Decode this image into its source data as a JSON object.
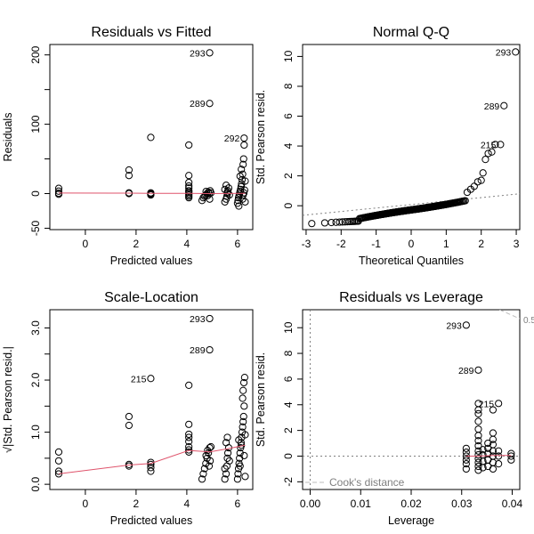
{
  "chart_data": [
    {
      "type": "scatter",
      "title": "Residuals vs Fitted",
      "xlabel": "Predicted values",
      "ylabel": "Residuals",
      "xlim": [
        -1.4,
        6.6
      ],
      "ylim": [
        -52,
        215
      ],
      "xticks": [
        0,
        2,
        4,
        6
      ],
      "yticks": [
        -50,
        0,
        50,
        100,
        150,
        200
      ],
      "ytick_labels": [
        "-50",
        "0",
        "",
        "100",
        "",
        "200"
      ],
      "points": [
        [
          -1.05,
          0.5
        ],
        [
          -1.05,
          3.5
        ],
        [
          -1.05,
          7.5
        ],
        [
          -1.05,
          -1
        ],
        [
          1.72,
          0
        ],
        [
          1.72,
          1
        ],
        [
          1.72,
          26
        ],
        [
          1.72,
          34
        ],
        [
          2.58,
          -1
        ],
        [
          2.58,
          -2
        ],
        [
          2.58,
          0
        ],
        [
          2.58,
          1
        ],
        [
          2.58,
          81
        ],
        [
          4.08,
          -6
        ],
        [
          4.08,
          -4
        ],
        [
          4.08,
          -2
        ],
        [
          4.08,
          0
        ],
        [
          4.08,
          2
        ],
        [
          4.08,
          4
        ],
        [
          4.08,
          8
        ],
        [
          4.08,
          11
        ],
        [
          4.08,
          16
        ],
        [
          4.08,
          26
        ],
        [
          4.08,
          70
        ],
        [
          4.6,
          -10
        ],
        [
          4.65,
          -6
        ],
        [
          4.7,
          -4
        ],
        [
          4.75,
          -2
        ],
        [
          4.8,
          0
        ],
        [
          4.85,
          2
        ],
        [
          4.9,
          -8
        ],
        [
          4.92,
          4
        ],
        [
          4.88,
          0
        ],
        [
          4.82,
          -3
        ],
        [
          4.76,
          3
        ],
        [
          4.95,
          1
        ],
        [
          4.9,
          130
        ],
        [
          4.9,
          203
        ],
        [
          5.5,
          -12
        ],
        [
          5.55,
          -8
        ],
        [
          5.58,
          -4
        ],
        [
          5.6,
          0
        ],
        [
          5.62,
          4
        ],
        [
          5.65,
          8
        ],
        [
          5.55,
          12
        ],
        [
          5.6,
          2
        ],
        [
          5.68,
          -2
        ],
        [
          5.5,
          6
        ],
        [
          6.0,
          -14
        ],
        [
          6.02,
          -10
        ],
        [
          6.04,
          -6
        ],
        [
          6.06,
          -3
        ],
        [
          6.08,
          0
        ],
        [
          6.1,
          3
        ],
        [
          6.12,
          6
        ],
        [
          6.14,
          10
        ],
        [
          6.16,
          14
        ],
        [
          6.18,
          20
        ],
        [
          6.2,
          28
        ],
        [
          6.22,
          42
        ],
        [
          6.24,
          50
        ],
        [
          6.26,
          70
        ],
        [
          6.2,
          -8
        ],
        [
          6.22,
          -2
        ],
        [
          6.25,
          1
        ],
        [
          6.28,
          5
        ],
        [
          6.3,
          -12
        ],
        [
          6.15,
          35
        ],
        [
          6.26,
          80
        ],
        [
          6.3,
          18
        ],
        [
          6.1,
          25
        ],
        [
          6.05,
          -18
        ]
      ],
      "smoother": [
        [
          -1.05,
          0.8
        ],
        [
          1.72,
          0.6
        ],
        [
          2.58,
          0.4
        ],
        [
          4.08,
          0.2
        ],
        [
          4.9,
          0.0
        ],
        [
          5.6,
          0.1
        ],
        [
          6.3,
          0.2
        ]
      ],
      "labeled_points": [
        {
          "label": "293",
          "x": 4.9,
          "y": 203
        },
        {
          "label": "289",
          "x": 4.9,
          "y": 130
        },
        {
          "label": "292",
          "x": 6.26,
          "y": 80
        }
      ]
    },
    {
      "type": "scatter",
      "title": "Normal Q-Q",
      "xlabel": "Theoretical Quantiles",
      "ylabel": "Std. Pearson resid.",
      "xlim": [
        -3.1,
        3.1
      ],
      "ylim": [
        -1.6,
        10.8
      ],
      "xticks": [
        -3,
        -2,
        -1,
        0,
        1,
        2,
        3
      ],
      "yticks": [
        0,
        2,
        4,
        6,
        8,
        10
      ],
      "points_formula": "theoretical normal quantiles vs sorted standardized residuals (n = 220)",
      "upper_tail": [
        [
          1.6,
          0.9
        ],
        [
          1.7,
          1.1
        ],
        [
          1.8,
          1.3
        ],
        [
          1.9,
          1.6
        ],
        [
          2.0,
          1.7
        ],
        [
          2.05,
          2.2
        ],
        [
          2.12,
          3.1
        ],
        [
          2.2,
          3.5
        ],
        [
          2.3,
          3.6
        ],
        [
          2.4,
          4.1
        ],
        [
          2.55,
          4.1
        ],
        [
          2.65,
          6.7
        ],
        [
          2.98,
          10.3
        ]
      ],
      "reference_line": [
        [
          -3.1,
          -0.64
        ],
        [
          3.1,
          0.8
        ]
      ],
      "labeled_points": [
        {
          "label": "293",
          "x": 2.98,
          "y": 10.3
        },
        {
          "label": "289",
          "x": 2.65,
          "y": 6.7
        },
        {
          "label": "215",
          "x": 2.55,
          "y": 4.1
        }
      ]
    },
    {
      "type": "scatter",
      "title": "Scale-Location",
      "xlabel": "Predicted values",
      "ylabel": "√|Std. Pearson resid.|",
      "xlim": [
        -1.4,
        6.6
      ],
      "ylim": [
        -0.1,
        3.35
      ],
      "xticks": [
        0,
        2,
        4,
        6
      ],
      "yticks": [
        0.0,
        0.5,
        1.0,
        1.5,
        2.0,
        2.5,
        3.0
      ],
      "ytick_labels": [
        "0.0",
        "",
        "1.0",
        "",
        "2.0",
        "",
        "3.0"
      ],
      "points": [
        [
          -1.05,
          0.62
        ],
        [
          -1.05,
          0.45
        ],
        [
          -1.05,
          0.25
        ],
        [
          -1.05,
          0.2
        ],
        [
          1.72,
          0.35
        ],
        [
          1.72,
          0.38
        ],
        [
          1.72,
          1.13
        ],
        [
          1.72,
          1.3
        ],
        [
          2.58,
          0.25
        ],
        [
          2.58,
          0.32
        ],
        [
          2.58,
          0.38
        ],
        [
          2.58,
          0.42
        ],
        [
          2.58,
          2.03
        ],
        [
          4.08,
          0.62
        ],
        [
          4.08,
          0.66
        ],
        [
          4.08,
          0.72
        ],
        [
          4.08,
          0.82
        ],
        [
          4.08,
          0.9
        ],
        [
          4.08,
          0.96
        ],
        [
          4.08,
          1.15
        ],
        [
          4.08,
          1.9
        ],
        [
          4.6,
          0.1
        ],
        [
          4.65,
          0.2
        ],
        [
          4.7,
          0.3
        ],
        [
          4.75,
          0.4
        ],
        [
          4.8,
          0.5
        ],
        [
          4.85,
          0.6
        ],
        [
          4.9,
          0.7
        ],
        [
          4.92,
          0.45
        ],
        [
          4.88,
          0.35
        ],
        [
          4.82,
          0.65
        ],
        [
          4.76,
          0.55
        ],
        [
          4.95,
          0.72
        ],
        [
          4.9,
          2.58
        ],
        [
          4.9,
          3.18
        ],
        [
          5.5,
          0.1
        ],
        [
          5.55,
          0.2
        ],
        [
          5.58,
          0.35
        ],
        [
          5.6,
          0.5
        ],
        [
          5.62,
          0.6
        ],
        [
          5.65,
          0.7
        ],
        [
          5.55,
          0.8
        ],
        [
          5.6,
          0.9
        ],
        [
          5.68,
          0.45
        ],
        [
          5.5,
          0.3
        ],
        [
          6.0,
          0.1
        ],
        [
          6.02,
          0.2
        ],
        [
          6.04,
          0.3
        ],
        [
          6.06,
          0.4
        ],
        [
          6.08,
          0.5
        ],
        [
          6.1,
          0.6
        ],
        [
          6.12,
          0.7
        ],
        [
          6.14,
          0.8
        ],
        [
          6.16,
          0.9
        ],
        [
          6.18,
          1.0
        ],
        [
          6.2,
          1.1
        ],
        [
          6.22,
          1.2
        ],
        [
          6.24,
          1.3
        ],
        [
          6.26,
          1.5
        ],
        [
          6.2,
          1.65
        ],
        [
          6.22,
          1.8
        ],
        [
          6.25,
          1.95
        ],
        [
          6.28,
          2.05
        ],
        [
          6.3,
          0.15
        ],
        [
          6.15,
          0.75
        ],
        [
          6.26,
          0.55
        ],
        [
          6.3,
          0.95
        ],
        [
          6.1,
          0.35
        ],
        [
          6.05,
          0.85
        ]
      ],
      "smoother": [
        [
          -1.05,
          0.2
        ],
        [
          1.72,
          0.37
        ],
        [
          2.58,
          0.4
        ],
        [
          4.08,
          0.65
        ],
        [
          4.9,
          0.62
        ],
        [
          5.6,
          0.68
        ],
        [
          6.3,
          0.75
        ]
      ],
      "labeled_points": [
        {
          "label": "293",
          "x": 4.9,
          "y": 3.18
        },
        {
          "label": "289",
          "x": 4.9,
          "y": 2.58
        },
        {
          "label": "215",
          "x": 2.58,
          "y": 2.03
        }
      ]
    },
    {
      "type": "scatter",
      "title": "Residuals vs Leverage",
      "xlabel": "Leverage",
      "ylabel": "Std. Pearson resid.",
      "xlim": [
        -0.0015,
        0.0415
      ],
      "ylim": [
        -2.6,
        11.4
      ],
      "xticks": [
        0.0,
        0.01,
        0.02,
        0.03,
        0.04
      ],
      "xtick_labels": [
        "0.00",
        "0.01",
        "0.02",
        "0.03",
        "0.04"
      ],
      "yticks": [
        -2,
        0,
        2,
        4,
        6,
        8,
        10
      ],
      "points": [
        [
          0.0309,
          -1.0
        ],
        [
          0.0309,
          -0.6
        ],
        [
          0.0309,
          -0.3
        ],
        [
          0.0309,
          0.0
        ],
        [
          0.0309,
          0.3
        ],
        [
          0.0309,
          0.6
        ],
        [
          0.0309,
          10.2
        ],
        [
          0.0333,
          -1.1
        ],
        [
          0.0333,
          -0.8
        ],
        [
          0.0333,
          -0.5
        ],
        [
          0.0333,
          -0.2
        ],
        [
          0.0333,
          0.1
        ],
        [
          0.0333,
          0.4
        ],
        [
          0.0333,
          0.8
        ],
        [
          0.0333,
          1.2
        ],
        [
          0.0333,
          1.6
        ],
        [
          0.0333,
          2.1
        ],
        [
          0.0333,
          2.7
        ],
        [
          0.0333,
          3.3
        ],
        [
          0.0333,
          3.6
        ],
        [
          0.0333,
          4.1
        ],
        [
          0.0333,
          6.7
        ],
        [
          0.0342,
          -0.9
        ],
        [
          0.0342,
          -0.4
        ],
        [
          0.0342,
          0.1
        ],
        [
          0.0342,
          0.5
        ],
        [
          0.0352,
          -0.8
        ],
        [
          0.0352,
          -0.3
        ],
        [
          0.0352,
          0.2
        ],
        [
          0.0352,
          0.6
        ],
        [
          0.0352,
          1.0
        ],
        [
          0.0362,
          -1.0
        ],
        [
          0.0362,
          -0.5
        ],
        [
          0.0362,
          0.0
        ],
        [
          0.0362,
          0.4
        ],
        [
          0.0362,
          0.9
        ],
        [
          0.0362,
          1.3
        ],
        [
          0.0362,
          1.8
        ],
        [
          0.0362,
          3.6
        ],
        [
          0.0373,
          -0.6
        ],
        [
          0.0373,
          0.0
        ],
        [
          0.0373,
          0.4
        ],
        [
          0.0373,
          4.1
        ],
        [
          0.0398,
          -0.3
        ],
        [
          0.0398,
          0.0
        ],
        [
          0.0398,
          0.2
        ]
      ],
      "smoother": [
        [
          0.0309,
          0.0
        ],
        [
          0.0333,
          0.0
        ],
        [
          0.0362,
          0.05
        ],
        [
          0.0398,
          0.05
        ]
      ],
      "cooks_contour_label": "0.5",
      "cooks_contour": [
        [
          0.0375,
          11.4
        ],
        [
          0.0415,
          10.7
        ]
      ],
      "legend": "Cook's distance",
      "labeled_points": [
        {
          "label": "293",
          "x": 0.0309,
          "y": 10.2
        },
        {
          "label": "289",
          "x": 0.0333,
          "y": 6.7
        },
        {
          "label": "215",
          "x": 0.0373,
          "y": 4.1
        }
      ]
    }
  ],
  "colors": {
    "points": "#000000",
    "smoother": "#DF536B",
    "reference": "#808080",
    "contour": "#BEBEBE"
  }
}
